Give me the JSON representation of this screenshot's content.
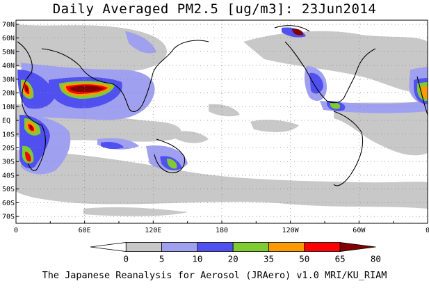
{
  "title": "Daily Averaged PM2.5 [ug/m3]: 23Jun2014",
  "lat_labels": [
    "70N",
    "60N",
    "50N",
    "40N",
    "30N",
    "20N",
    "10N",
    "EQ",
    "10S",
    "20S",
    "30S",
    "40S",
    "50S",
    "60S",
    "70S"
  ],
  "lon_labels": [
    "0",
    "60E",
    "120E",
    "180",
    "120W",
    "60W",
    "0"
  ],
  "colorbar": {
    "ticks": [
      "0",
      "5",
      "10",
      "20",
      "35",
      "50",
      "65",
      "80"
    ],
    "colors": [
      "#ffffff",
      "#c8c8c8",
      "#a0a0f0",
      "#5050f0",
      "#80cc30",
      "#ff9900",
      "#ff0000",
      "#800000"
    ]
  },
  "footer": "The Japanese Reanalysis for Aerosol (JRAero) v1.0 MRI/KU_RIAM"
}
